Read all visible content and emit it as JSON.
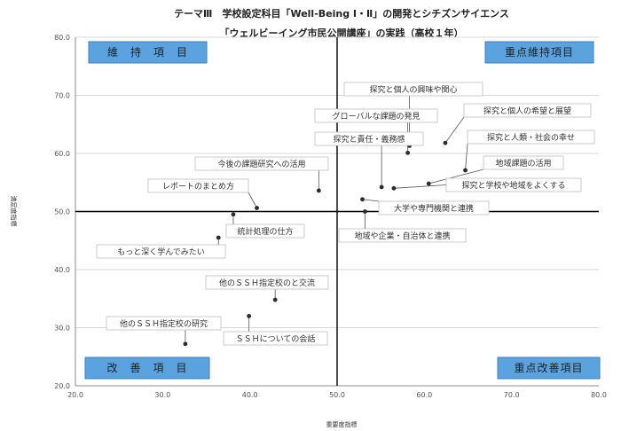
{
  "chart_data": {
    "type": "scatter",
    "title": "テーマⅢ　学校設定科目「Well-Being Ⅰ・Ⅱ」の開発とシチズンサイエンス",
    "subtitle": "「ウェルビーイング市民公開講座」の実践（高校１年）",
    "xlabel": "重要度指標",
    "ylabel": "満足度指標",
    "xlim": [
      20,
      80
    ],
    "ylim": [
      20,
      80
    ],
    "xticks": [
      "20.0",
      "30.0",
      "40.0",
      "50.0",
      "60.0",
      "70.0",
      "80.0"
    ],
    "yticks": [
      "20.0",
      "30.0",
      "40.0",
      "50.0",
      "60.0",
      "70.0",
      "80.0"
    ],
    "divider_x": 50,
    "divider_y": 50,
    "grid": "horizontal",
    "quadrants": [
      {
        "label": "維　持　項　目",
        "position": "top-left"
      },
      {
        "label": "重点維持項目",
        "position": "top-right"
      },
      {
        "label": "改　善　項　目",
        "position": "bottom-left"
      },
      {
        "label": "重点改善項目",
        "position": "bottom-right"
      }
    ],
    "points": [
      {
        "label": "探究と個人の興味や関心",
        "x": 58.3,
        "y": 61.3
      },
      {
        "label": "グローバルな課題の発見",
        "x": 58.1,
        "y": 60.1
      },
      {
        "label": "探究と個人の希望と展望",
        "x": 62.4,
        "y": 61.8
      },
      {
        "label": "探究と責任・義務感",
        "x": 55.1,
        "y": 54.2
      },
      {
        "label": "探究と人類・社会の幸せ",
        "x": 64.7,
        "y": 57.1
      },
      {
        "label": "地域課題の活用",
        "x": 60.5,
        "y": 54.8
      },
      {
        "label": "探究と学校や地域をよくする",
        "x": 56.5,
        "y": 54.0
      },
      {
        "label": "今後の課題研究への活用",
        "x": 47.9,
        "y": 53.6
      },
      {
        "label": "レポートのまとめ方",
        "x": 40.8,
        "y": 50.6
      },
      {
        "label": "大学や専門機関と連携",
        "x": 52.9,
        "y": 52.1
      },
      {
        "label": "地域や企業・自治体と連携",
        "x": 53.2,
        "y": 50.0
      },
      {
        "label": "統計処理の仕方",
        "x": 38.1,
        "y": 49.5
      },
      {
        "label": "もっと深く学んでみたい",
        "x": 36.4,
        "y": 45.5
      },
      {
        "label": "他のＳＳＨ指定校のと交流",
        "x": 42.9,
        "y": 34.8
      },
      {
        "label": "他のＳＳＨ指定校の研究",
        "x": 32.6,
        "y": 27.2
      },
      {
        "label": "ＳＳＨについての会話",
        "x": 39.9,
        "y": 32.0
      }
    ]
  },
  "colors": {
    "quad_box_fill": "#5aa3df",
    "quad_box_stroke": "#3b7fc0",
    "point": "#2b2b2b",
    "grid": "#d9d9d9",
    "divider": "#000000",
    "label_box_stroke": "#bfbfbf"
  }
}
